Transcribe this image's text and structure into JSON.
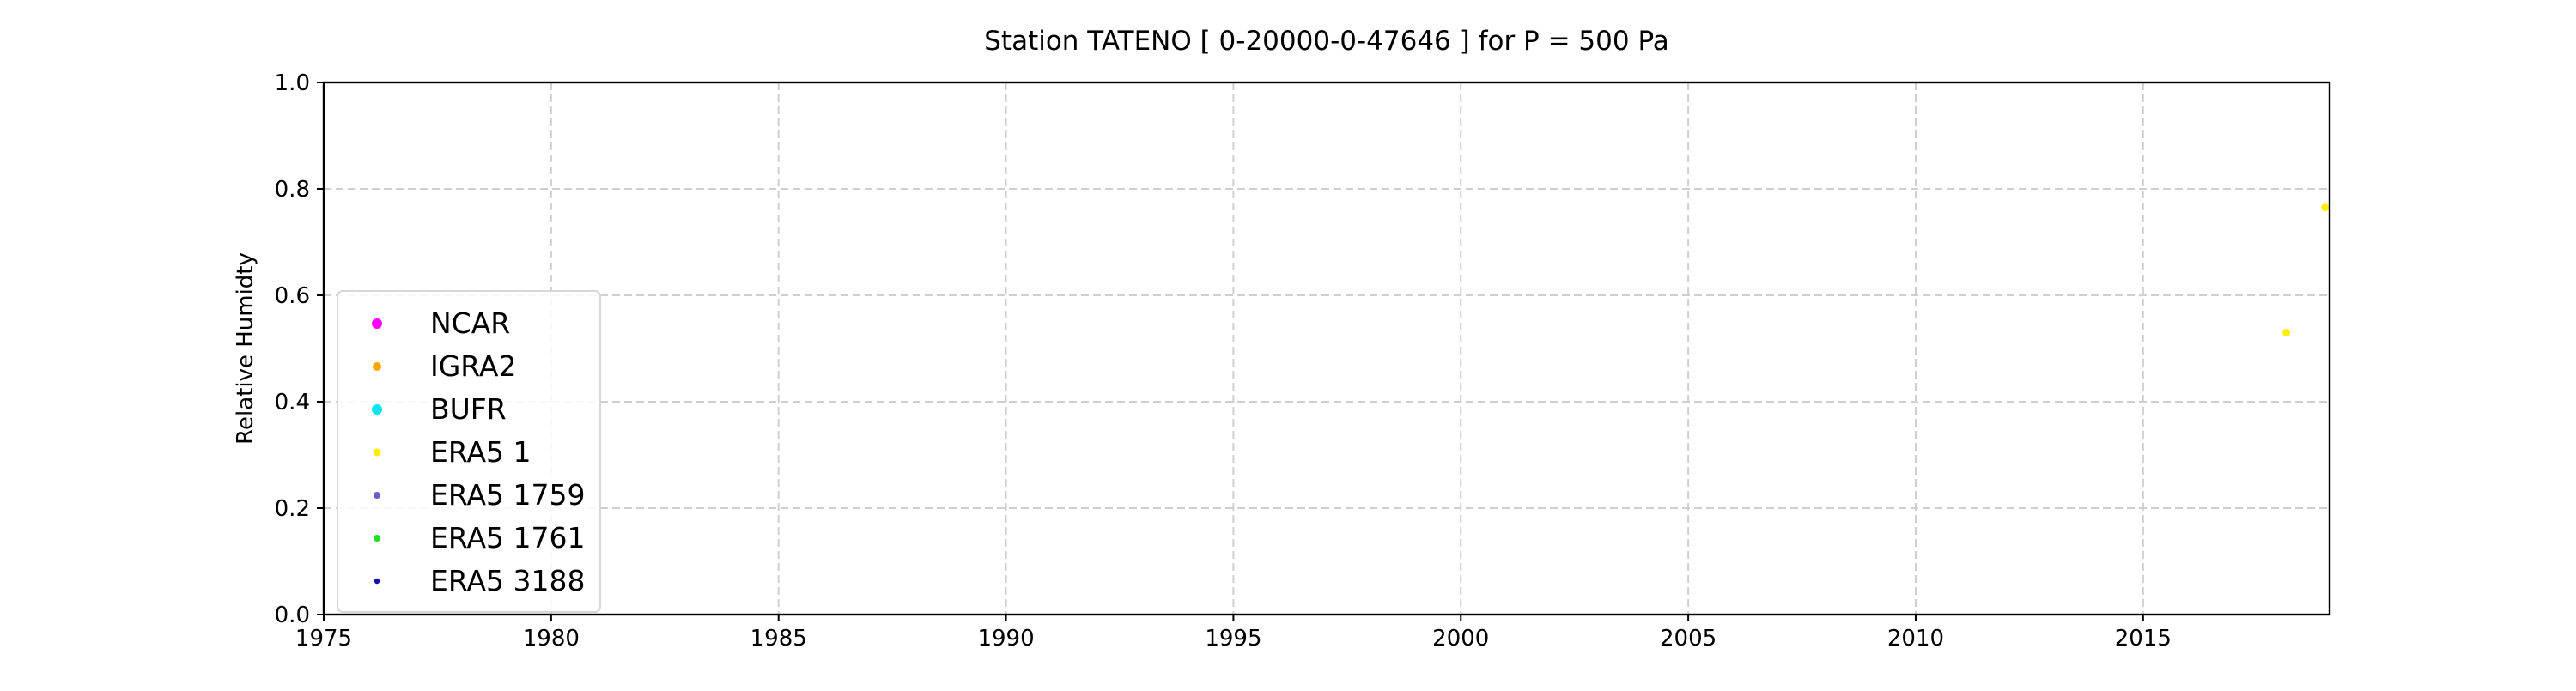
{
  "chart_data": {
    "type": "scatter",
    "title": "Station  TATENO [ 0-20000-0-47646 ]  for P = 500 Pa",
    "xlabel": "",
    "ylabel": "Relative Humidty",
    "xlim": [
      1975,
      2019.1
    ],
    "ylim": [
      0.0,
      1.0
    ],
    "x_ticks": [
      "1975",
      "1980",
      "1985",
      "1990",
      "1995",
      "2000",
      "2005",
      "2010",
      "2015"
    ],
    "y_ticks": [
      "0.0",
      "0.2",
      "0.4",
      "0.6",
      "0.8",
      "1.0"
    ],
    "grid": true,
    "legend_position": "center-left",
    "series": [
      {
        "name": "NCAR",
        "color": "#ff00ff",
        "points": []
      },
      {
        "name": "IGRA2",
        "color": "#ffa500",
        "points": []
      },
      {
        "name": "BUFR",
        "color": "#00e5ee",
        "points": []
      },
      {
        "name": "ERA5 1",
        "color": "#ffee00",
        "points": [
          [
            2018.15,
            0.53
          ],
          [
            2019.0,
            0.765
          ]
        ]
      },
      {
        "name": "ERA5 1759",
        "color": "#6a5acd",
        "points": []
      },
      {
        "name": "ERA5 1761",
        "color": "#22dd22",
        "points": []
      },
      {
        "name": "ERA5 3188",
        "color": "#1010aa",
        "points": []
      }
    ]
  }
}
